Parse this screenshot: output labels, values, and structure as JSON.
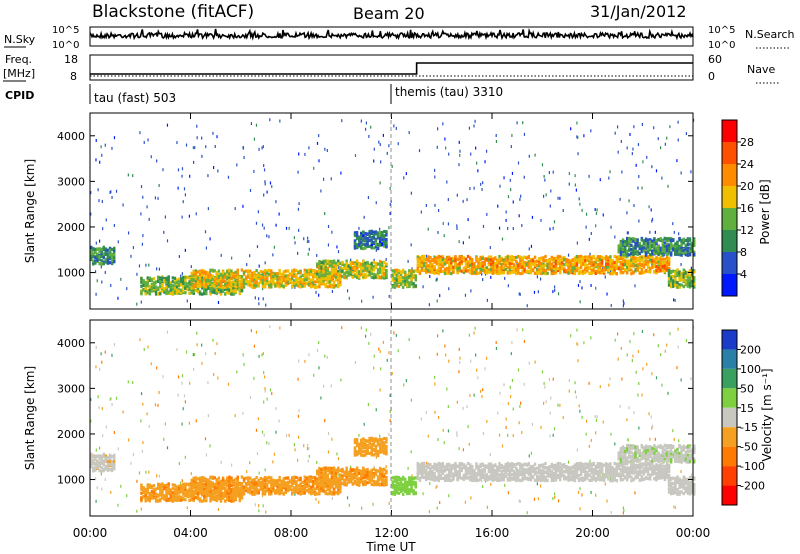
{
  "header": {
    "radar_label": "Blackstone (fitACF)",
    "beam_label": "Beam 20",
    "date_label": "31/Jan/2012"
  },
  "noise_panel": {
    "left_label": "N.Sky",
    "right_label": "N.Search",
    "left_ticks": [
      "10^5",
      "10^0"
    ],
    "right_ticks": [
      "10^5",
      "10^0"
    ]
  },
  "freq_panel": {
    "left_label_line1": "Freq.",
    "left_label_line2": "[MHz]",
    "right_label": "Nave",
    "left_ticks": [
      "18",
      "8"
    ],
    "right_ticks": [
      "60",
      "0"
    ]
  },
  "cpid_panel": {
    "label": "CPID",
    "programs": [
      {
        "name": "tau (fast) 503",
        "start_hour": 0
      },
      {
        "name": "themis (tau) 3310",
        "start_hour": 12
      }
    ]
  },
  "x_axis": {
    "label": "Time UT",
    "ticks": [
      "00:00",
      "04:00",
      "08:00",
      "12:00",
      "16:00",
      "20:00",
      "00:00"
    ],
    "range_hours": [
      0,
      24
    ]
  },
  "power_panel": {
    "ylabel": "Slant Range [km]",
    "yticks": [
      "1000",
      "2000",
      "3000",
      "4000"
    ],
    "colorbar_label": "Power [dB]",
    "colorbar_ticks": [
      "4",
      "8",
      "12",
      "16",
      "20",
      "24",
      "28"
    ],
    "colors": [
      "#0018ff",
      "#2850c8",
      "#308c50",
      "#60b040",
      "#f0c000",
      "#ff8c00",
      "#ff5000",
      "#ff0000"
    ]
  },
  "velocity_panel": {
    "ylabel": "Slant Range [km]",
    "yticks": [
      "1000",
      "2000",
      "3000",
      "4000"
    ],
    "colorbar_label": "Velocity [m s⁻¹]",
    "colorbar_ticks": [
      "200",
      "100",
      "50",
      "15",
      "-15",
      "-50",
      "-100",
      "-200"
    ],
    "colors": [
      "#1a3cc8",
      "#2a7fa8",
      "#3aa060",
      "#7ed040",
      "#c8c8c0",
      "#f5a020",
      "#ff7a00",
      "#ff4000",
      "#ff0000"
    ]
  },
  "chart_data": {
    "type": "heatmap",
    "title": "Blackstone (fitACF)  Beam 20  31/Jan/2012",
    "xlabel": "Time UT",
    "ylabel": "Slant Range [km]",
    "xlim": [
      0,
      24
    ],
    "ylim": [
      200,
      4500
    ],
    "cpid_change_hour": 12,
    "freq_step_hour": 13,
    "scatter_bands": [
      {
        "start_hour": 0,
        "end_hour": 1,
        "range_km": 1400,
        "power_db": 10,
        "velocity": -5
      },
      {
        "start_hour": 2,
        "end_hour": 6,
        "range_km": 750,
        "power_db": 14,
        "velocity": -40
      },
      {
        "start_hour": 4,
        "end_hour": 10,
        "range_km": 900,
        "power_db": 18,
        "velocity": -40
      },
      {
        "start_hour": 9,
        "end_hour": 11.8,
        "range_km": 1100,
        "power_db": 16,
        "velocity": -40
      },
      {
        "start_hour": 10.5,
        "end_hour": 11.8,
        "range_km": 1750,
        "power_db": 8,
        "velocity": -30
      },
      {
        "start_hour": 12,
        "end_hour": 13,
        "range_km": 900,
        "power_db": 16,
        "velocity": 30
      },
      {
        "start_hour": 13,
        "end_hour": 23,
        "range_km": 1200,
        "power_db": 20,
        "velocity": 0
      },
      {
        "start_hour": 21,
        "end_hour": 24,
        "range_km": 1600,
        "power_db": 10,
        "velocity": 5
      },
      {
        "start_hour": 23,
        "end_hour": 24,
        "range_km": 900,
        "power_db": 14,
        "velocity": 0
      }
    ]
  }
}
